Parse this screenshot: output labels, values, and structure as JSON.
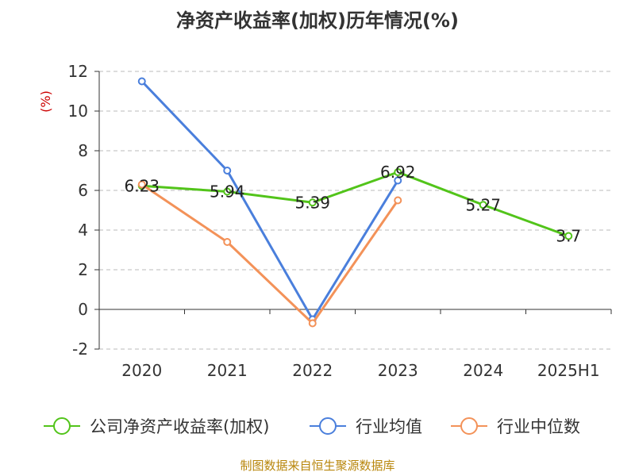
{
  "chart_data": {
    "type": "line",
    "title": "净资产收益率(加权)历年情况(%)",
    "ylabel": "(%)",
    "categories": [
      "2020",
      "2021",
      "2022",
      "2023",
      "2024",
      "2025H1"
    ],
    "ylim": [
      -2,
      12
    ],
    "yticks": [
      -2,
      0,
      2,
      4,
      6,
      8,
      10,
      12
    ],
    "grid": true,
    "legend_position": "bottom",
    "series": [
      {
        "name": "公司净资产收益率(加权)",
        "color": "#52c41a",
        "values": [
          6.23,
          5.94,
          5.39,
          6.92,
          5.27,
          3.7
        ],
        "labels": [
          "6.23",
          "5.94",
          "5.39",
          "6.92",
          "5.27",
          "3.7"
        ]
      },
      {
        "name": "行业均值",
        "color": "#4a7fdc",
        "values": [
          11.5,
          7.0,
          -0.5,
          6.5,
          null,
          null
        ]
      },
      {
        "name": "行业中位数",
        "color": "#f39259",
        "values": [
          6.3,
          3.4,
          -0.7,
          5.5,
          null,
          null
        ]
      }
    ]
  },
  "source": "制图数据来自恒生聚源数据库"
}
